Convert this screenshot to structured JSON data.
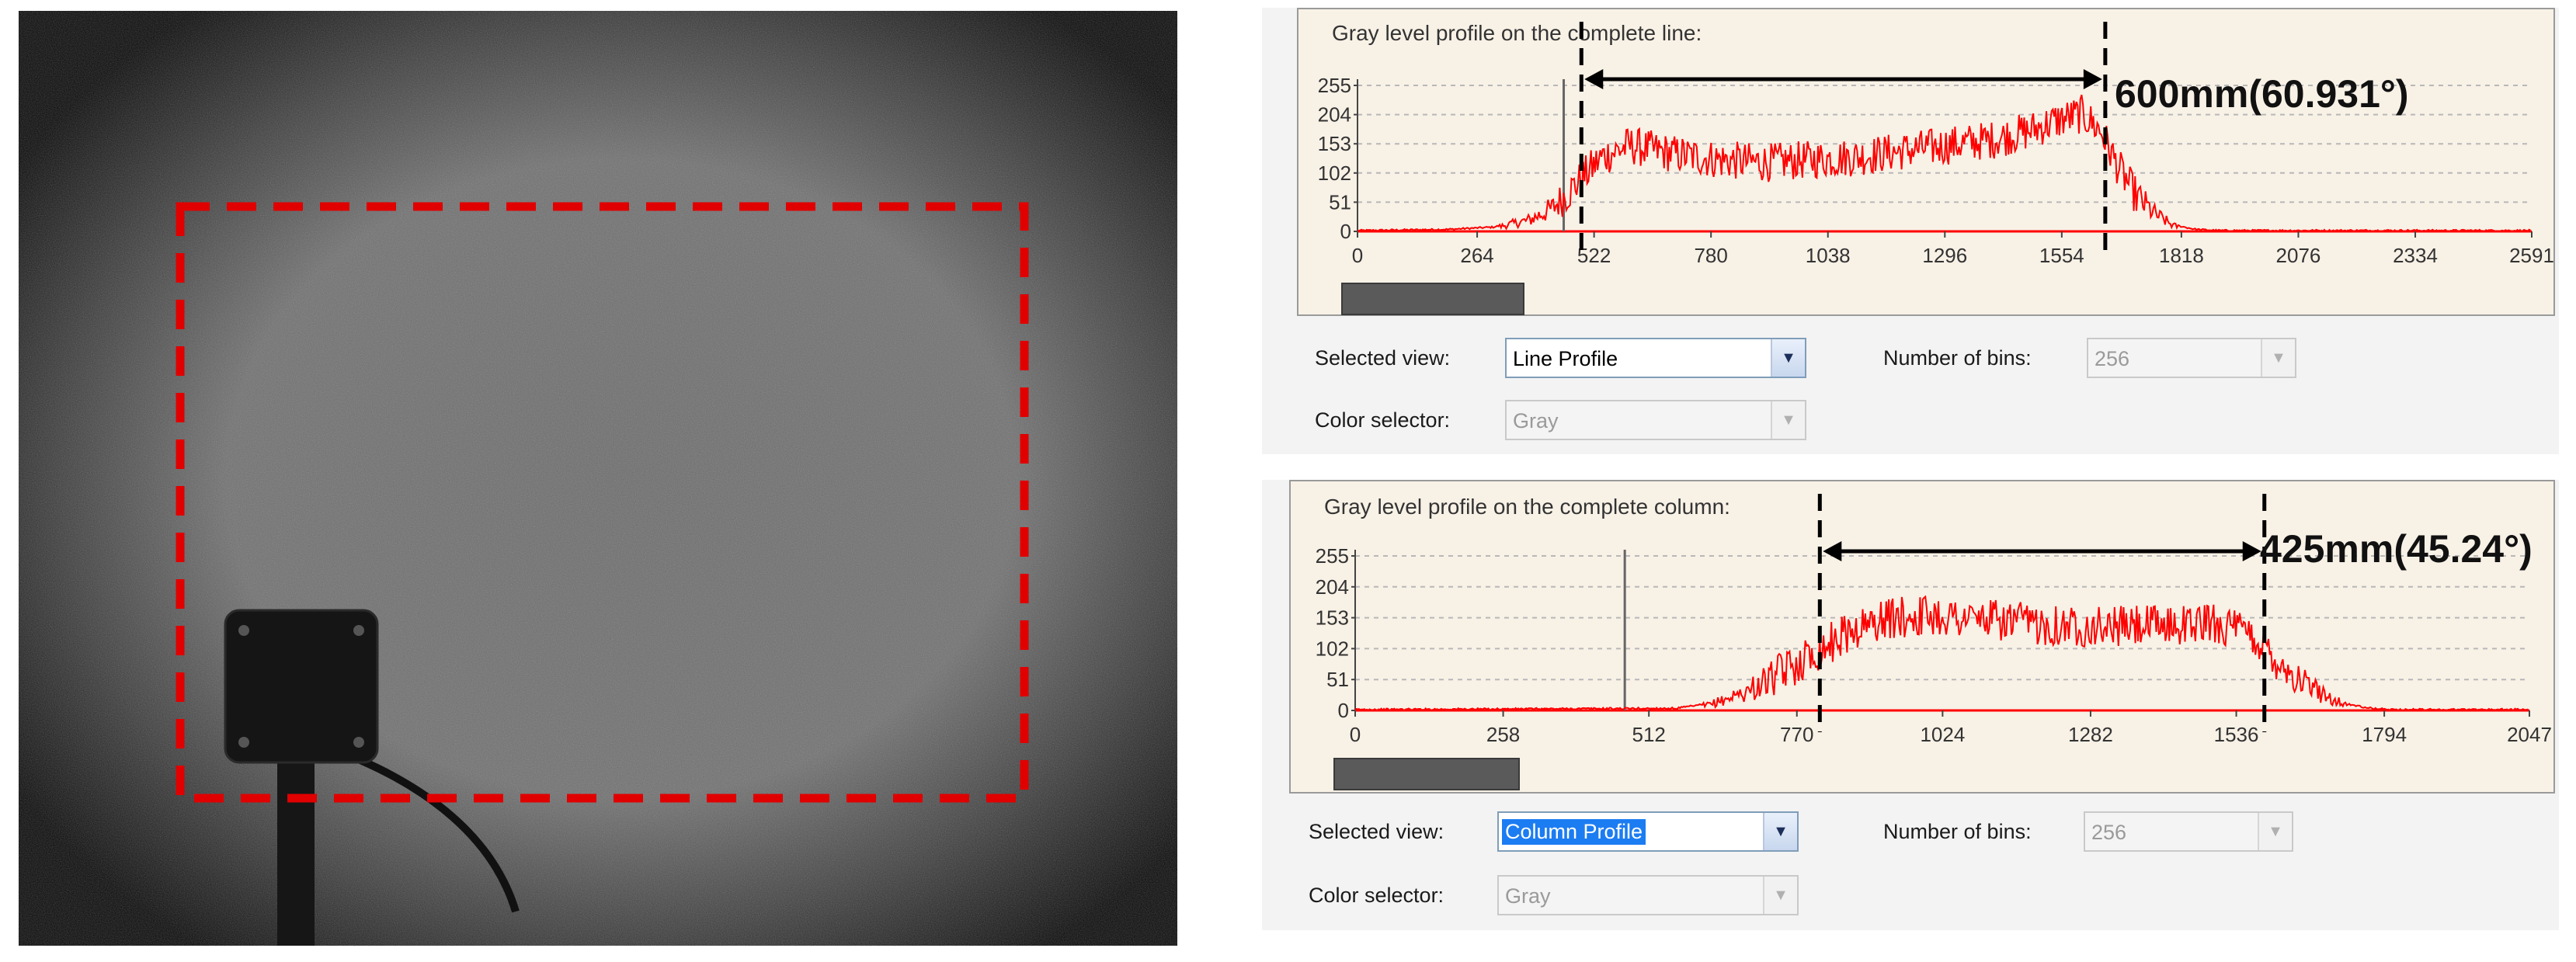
{
  "line_panel": {
    "title": "Gray level profile on the complete line:",
    "selected_view_label": "Selected view:",
    "selected_view_value": "Line Profile",
    "bins_label": "Number of bins:",
    "bins_value": "256",
    "color_label": "Color selector:",
    "color_value": "Gray",
    "annotation": "600mm(60.931°)",
    "scroll_position": 0.42
  },
  "column_panel": {
    "title": "Gray level profile on the complete column:",
    "selected_view_label": "Selected view:",
    "selected_view_value": "Column Profile",
    "bins_label": "Number of bins:",
    "bins_value": "256",
    "color_label": "Color selector:",
    "color_value": "Gray",
    "annotation": "425mm(45.24°)",
    "scroll_position": 0.46
  },
  "colors": {
    "profile": "#ff0000",
    "panel_bg": "#f8f1e6",
    "control_bg": "#f3f3f3",
    "roi_dash": "#e00000"
  },
  "icons": [
    "dropdown-arrow-icon",
    "double-arrow-icon"
  ],
  "chart_data": [
    {
      "type": "line",
      "title": "Gray level profile on the complete line:",
      "xlabel": "",
      "ylabel": "",
      "x_ticks": [
        0,
        264,
        522,
        780,
        1038,
        1296,
        1554,
        1818,
        2076,
        2334,
        2591
      ],
      "x_tick_labels": [
        "0",
        "264",
        "522",
        "780",
        "1038",
        "1296",
        "1554",
        "1818",
        "2076",
        "2334",
        "2591"
      ],
      "y_ticks": [
        0,
        51,
        102,
        153,
        204,
        255
      ],
      "y_tick_labels": [
        "0",
        "51",
        "102",
        "153",
        "204",
        "255"
      ],
      "xlim": [
        0,
        2591
      ],
      "ylim": [
        0,
        255
      ],
      "cursor_x": 455,
      "marker_left_x": 494,
      "marker_right_x": 1650,
      "grid": true,
      "series": [
        {
          "points": [
            [
              0,
              0
            ],
            [
              200,
              2
            ],
            [
              300,
              6
            ],
            [
              380,
              20
            ],
            [
              430,
              40
            ],
            [
              480,
              80
            ],
            [
              540,
              130
            ],
            [
              600,
              150
            ],
            [
              700,
              135
            ],
            [
              800,
              125
            ],
            [
              900,
              120
            ],
            [
              1000,
              125
            ],
            [
              1100,
              130
            ],
            [
              1200,
              140
            ],
            [
              1300,
              150
            ],
            [
              1400,
              160
            ],
            [
              1480,
              175
            ],
            [
              1550,
              195
            ],
            [
              1600,
              205
            ],
            [
              1640,
              175
            ],
            [
              1680,
              110
            ],
            [
              1720,
              60
            ],
            [
              1760,
              30
            ],
            [
              1800,
              10
            ],
            [
              1850,
              2
            ],
            [
              1900,
              0
            ],
            [
              2591,
              0
            ]
          ],
          "noise": 34
        }
      ]
    },
    {
      "type": "line",
      "title": "Gray level profile on the complete column:",
      "xlabel": "",
      "ylabel": "",
      "x_ticks": [
        0,
        258,
        512,
        770,
        1024,
        1282,
        1536,
        1794,
        2047
      ],
      "x_tick_labels": [
        "0",
        "258",
        "512",
        "770",
        "1024",
        "1282",
        "1536",
        "1794",
        "2047"
      ],
      "y_ticks": [
        0,
        51,
        102,
        153,
        204,
        255
      ],
      "y_tick_labels": [
        "0",
        "51",
        "102",
        "153",
        "204",
        "255"
      ],
      "xlim": [
        0,
        2047
      ],
      "ylim": [
        0,
        255
      ],
      "cursor_x": 470,
      "marker_left_x": 810,
      "marker_right_x": 1585,
      "grid": true,
      "series": [
        {
          "points": [
            [
              0,
              0
            ],
            [
              560,
              2
            ],
            [
              620,
              10
            ],
            [
              680,
              30
            ],
            [
              740,
              60
            ],
            [
              800,
              95
            ],
            [
              860,
              130
            ],
            [
              920,
              150
            ],
            [
              1000,
              158
            ],
            [
              1100,
              150
            ],
            [
              1200,
              142
            ],
            [
              1300,
              138
            ],
            [
              1400,
              140
            ],
            [
              1500,
              145
            ],
            [
              1560,
              125
            ],
            [
              1600,
              90
            ],
            [
              1640,
              55
            ],
            [
              1680,
              30
            ],
            [
              1720,
              12
            ],
            [
              1760,
              3
            ],
            [
              1800,
              0
            ],
            [
              2047,
              0
            ]
          ],
          "noise": 34
        }
      ]
    }
  ]
}
